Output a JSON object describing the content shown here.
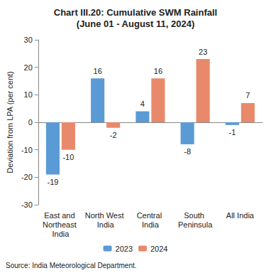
{
  "chart_data": {
    "type": "bar",
    "title": "Chart III.20: Cumulative SWM Rainfall",
    "subtitle": "(June 01 - August 11, 2024)",
    "y_label": "Deviation from LPA (per cent)",
    "annotations": [
      "Source: India Meteorological Department."
    ],
    "categories": [
      "East and Northeast India",
      "North West India",
      "Central India",
      "South Peninsula",
      "All India"
    ],
    "series": [
      {
        "name": "2023",
        "color": "#5b9bd5",
        "values": [
          -19,
          16,
          4,
          -8,
          -1
        ]
      },
      {
        "name": "2024",
        "color": "#e9896b",
        "values": [
          -10,
          -2,
          16,
          23,
          7
        ]
      }
    ],
    "ylim": [
      -30,
      30
    ],
    "yticks": [
      -30,
      -20,
      -10,
      0,
      10,
      20,
      30
    ],
    "grid": false,
    "legend": "bottom",
    "data_labels": true
  }
}
